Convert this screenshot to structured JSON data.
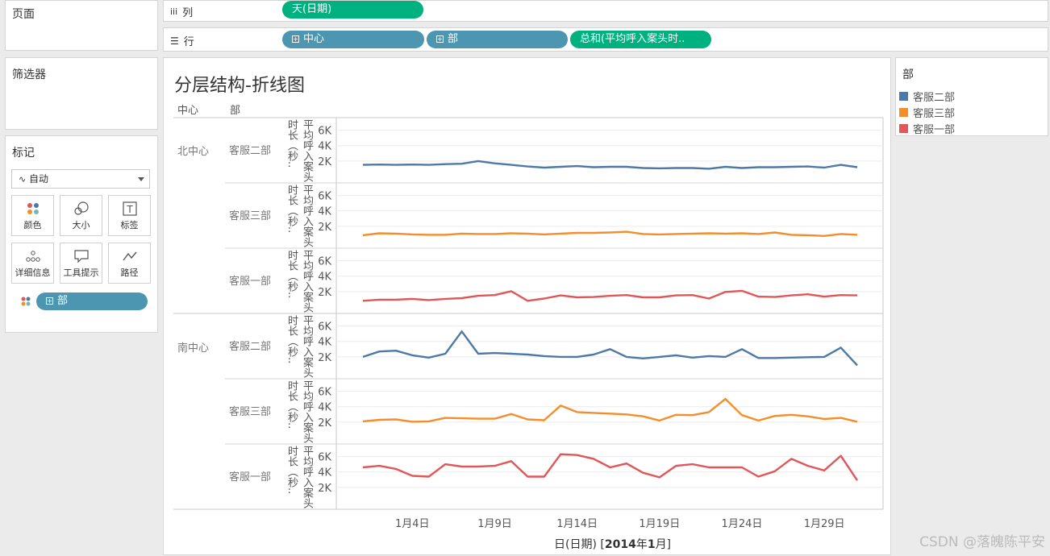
{
  "left_panel": {
    "pages_title": "页面",
    "filters_title": "筛选器",
    "marks_title": "标记",
    "mark_type": "自动",
    "buttons": [
      "颜色",
      "大小",
      "标签",
      "详细信息",
      "工具提示",
      "路径"
    ],
    "color_field": "部"
  },
  "shelves": {
    "columns_label": "列",
    "columns_pills": [
      "天(日期)"
    ],
    "rows_label": "行",
    "rows_pills": [
      "中心",
      "部",
      "总和(平均呼入案头时.."
    ]
  },
  "legend": {
    "title": "部",
    "items": [
      {
        "label": "客服二部",
        "color": "#4e79a7"
      },
      {
        "label": "客服三部",
        "color": "#f28e2b"
      },
      {
        "label": "客服一部",
        "color": "#e15759"
      }
    ]
  },
  "sheet": {
    "title": "分层结构-折线图",
    "header_center": "中心",
    "header_dept": "部",
    "ylabel_line1": "平均呼入案",
    "ylabel_line2": "头时长（秒..",
    "xlabel_prefix": "日(日期) [",
    "xlabel_bold": "2014",
    "xlabel_mid": "年",
    "xlabel_bold2": "1",
    "xlabel_suffix": "月]"
  },
  "watermark": "CSDN @落魄陈平安",
  "chart_data": {
    "type": "line",
    "x": [
      1,
      2,
      3,
      4,
      5,
      6,
      7,
      8,
      9,
      10,
      11,
      12,
      13,
      14,
      15,
      16,
      17,
      18,
      19,
      20,
      21,
      22,
      23,
      24,
      25,
      26,
      27,
      28,
      29,
      30,
      31
    ],
    "x_ticks": [
      {
        "day": 4,
        "label": "1月4日"
      },
      {
        "day": 9,
        "label": "1月9日"
      },
      {
        "day": 14,
        "label": "1月14日"
      },
      {
        "day": 19,
        "label": "1月19日"
      },
      {
        "day": 24,
        "label": "1月24日"
      },
      {
        "day": 29,
        "label": "1月29日"
      }
    ],
    "y_ticks": [
      2000,
      4000,
      6000
    ],
    "y_tick_labels": [
      "2K",
      "4K",
      "6K"
    ],
    "ylim": [
      0,
      7000
    ],
    "panels": [
      {
        "center": "北中心",
        "dept": "客服二部",
        "color": "#4e79a7",
        "values": [
          1500,
          1550,
          1500,
          1550,
          1500,
          1600,
          1650,
          2000,
          1700,
          1500,
          1300,
          1150,
          1250,
          1350,
          1200,
          1250,
          1250,
          1100,
          1050,
          1100,
          1100,
          1000,
          1250,
          1100,
          1200,
          1200,
          1250,
          1300,
          1150,
          1500,
          1200
        ]
      },
      {
        "center": "北中心",
        "dept": "客服三部",
        "color": "#f28e2b",
        "values": [
          850,
          1100,
          1050,
          950,
          900,
          900,
          1050,
          1000,
          1000,
          1100,
          1050,
          950,
          1050,
          1150,
          1150,
          1200,
          1300,
          1000,
          950,
          1000,
          1050,
          1100,
          1050,
          1100,
          1000,
          1200,
          900,
          850,
          750,
          1000,
          900
        ]
      },
      {
        "center": "北中心",
        "dept": "客服一部",
        "color": "#e15759",
        "values": [
          800,
          950,
          950,
          1050,
          900,
          1050,
          1150,
          1450,
          1550,
          2050,
          800,
          1100,
          1500,
          1250,
          1300,
          1450,
          1550,
          1250,
          1250,
          1500,
          1550,
          1100,
          1950,
          2100,
          1350,
          1300,
          1500,
          1650,
          1350,
          1550,
          1500
        ]
      },
      {
        "center": "南中心",
        "dept": "客服二部",
        "color": "#4e79a7",
        "values": [
          2000,
          2700,
          2800,
          2200,
          1900,
          2400,
          5300,
          2400,
          2500,
          2400,
          2300,
          2100,
          2000,
          2000,
          2300,
          3000,
          2000,
          1800,
          2000,
          2200,
          1900,
          2100,
          2000,
          3000,
          1850,
          1850,
          1900,
          1950,
          2000,
          3200,
          900
        ]
      },
      {
        "center": "南中心",
        "dept": "客服三部",
        "color": "#f28e2b",
        "values": [
          2100,
          2300,
          2350,
          2050,
          2100,
          2550,
          2500,
          2450,
          2450,
          3050,
          2350,
          2250,
          4150,
          3300,
          3200,
          3100,
          3000,
          2750,
          2200,
          2950,
          2900,
          3300,
          5000,
          2900,
          2200,
          2800,
          2950,
          2750,
          2400,
          2550,
          2050
        ]
      },
      {
        "center": "南中心",
        "dept": "客服一部",
        "color": "#e15759",
        "values": [
          4600,
          4800,
          4400,
          3500,
          3400,
          5000,
          4700,
          4700,
          4800,
          5400,
          3400,
          3400,
          6300,
          6200,
          5700,
          4600,
          5100,
          3900,
          3300,
          4800,
          5000,
          4600,
          4600,
          4600,
          3400,
          4100,
          5700,
          4800,
          4200,
          6100,
          2900
        ]
      }
    ]
  }
}
